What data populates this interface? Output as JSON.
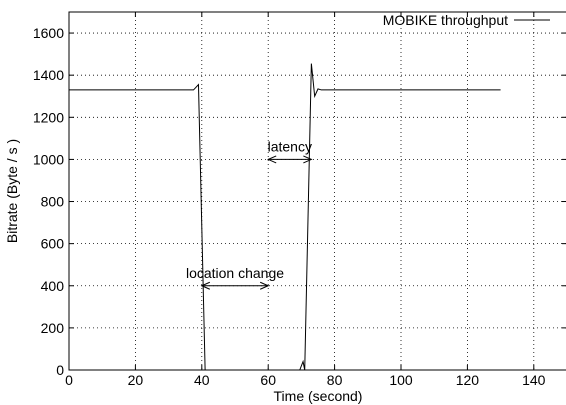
{
  "chart_data": {
    "type": "line",
    "title": "",
    "xlabel": "Time (second)",
    "ylabel": "Bitrate (Byte / s )",
    "xlim": [
      0,
      150
    ],
    "ylim": [
      0,
      1700
    ],
    "xticks": [
      0,
      20,
      40,
      60,
      80,
      100,
      120,
      140
    ],
    "yticks": [
      0,
      200,
      400,
      600,
      800,
      1000,
      1200,
      1400,
      1600
    ],
    "grid": true,
    "legend_position": "top-right",
    "series": [
      {
        "name": "MOBIKE throughput",
        "x": [
          0,
          37.5,
          39,
          41,
          41.2,
          69.5,
          70.5,
          71,
          73,
          74,
          75,
          76,
          130
        ],
        "y": [
          1330,
          1330,
          1355,
          0,
          0,
          0,
          40,
          0,
          1455,
          1300,
          1335,
          1330,
          1330
        ]
      }
    ],
    "annotations": [
      {
        "label": "location change",
        "x_from": 40,
        "x_to": 60,
        "y": 400
      },
      {
        "label": "latency",
        "x_from": 60,
        "x_to": 73,
        "y": 1000
      }
    ]
  }
}
